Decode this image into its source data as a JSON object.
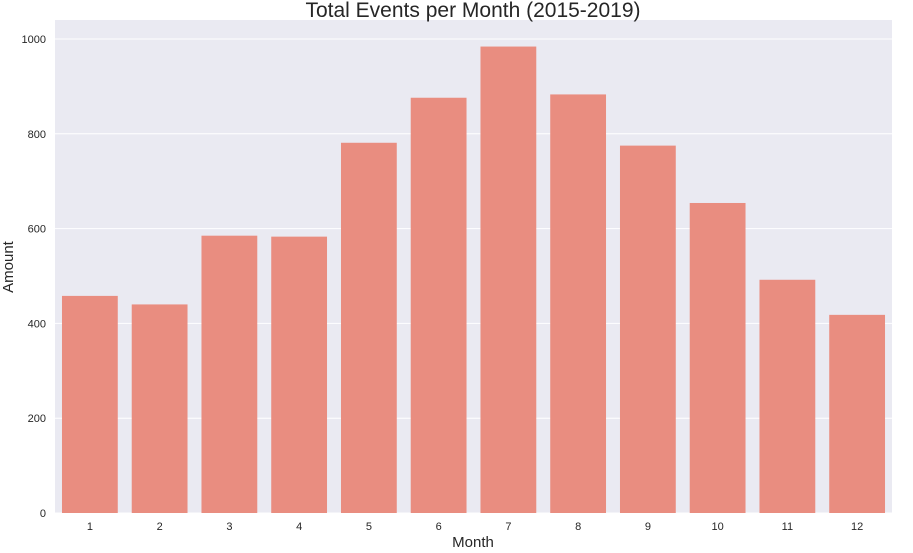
{
  "chart_data": {
    "type": "bar",
    "title": "Total Events per Month (2015-2019)",
    "xlabel": "Month",
    "ylabel": "Amount",
    "categories": [
      "1",
      "2",
      "3",
      "4",
      "5",
      "6",
      "7",
      "8",
      "9",
      "10",
      "11",
      "12"
    ],
    "values": [
      458,
      440,
      585,
      583,
      781,
      876,
      984,
      883,
      775,
      654,
      492,
      418
    ],
    "yticks": [
      "0",
      "200",
      "400",
      "600",
      "800",
      "1000"
    ],
    "ylim": [
      0,
      1040
    ],
    "grid": true,
    "legend": "none",
    "colors": {
      "bar": "#e98d80",
      "background": "#eaeaf2",
      "grid": "#ffffff"
    }
  }
}
